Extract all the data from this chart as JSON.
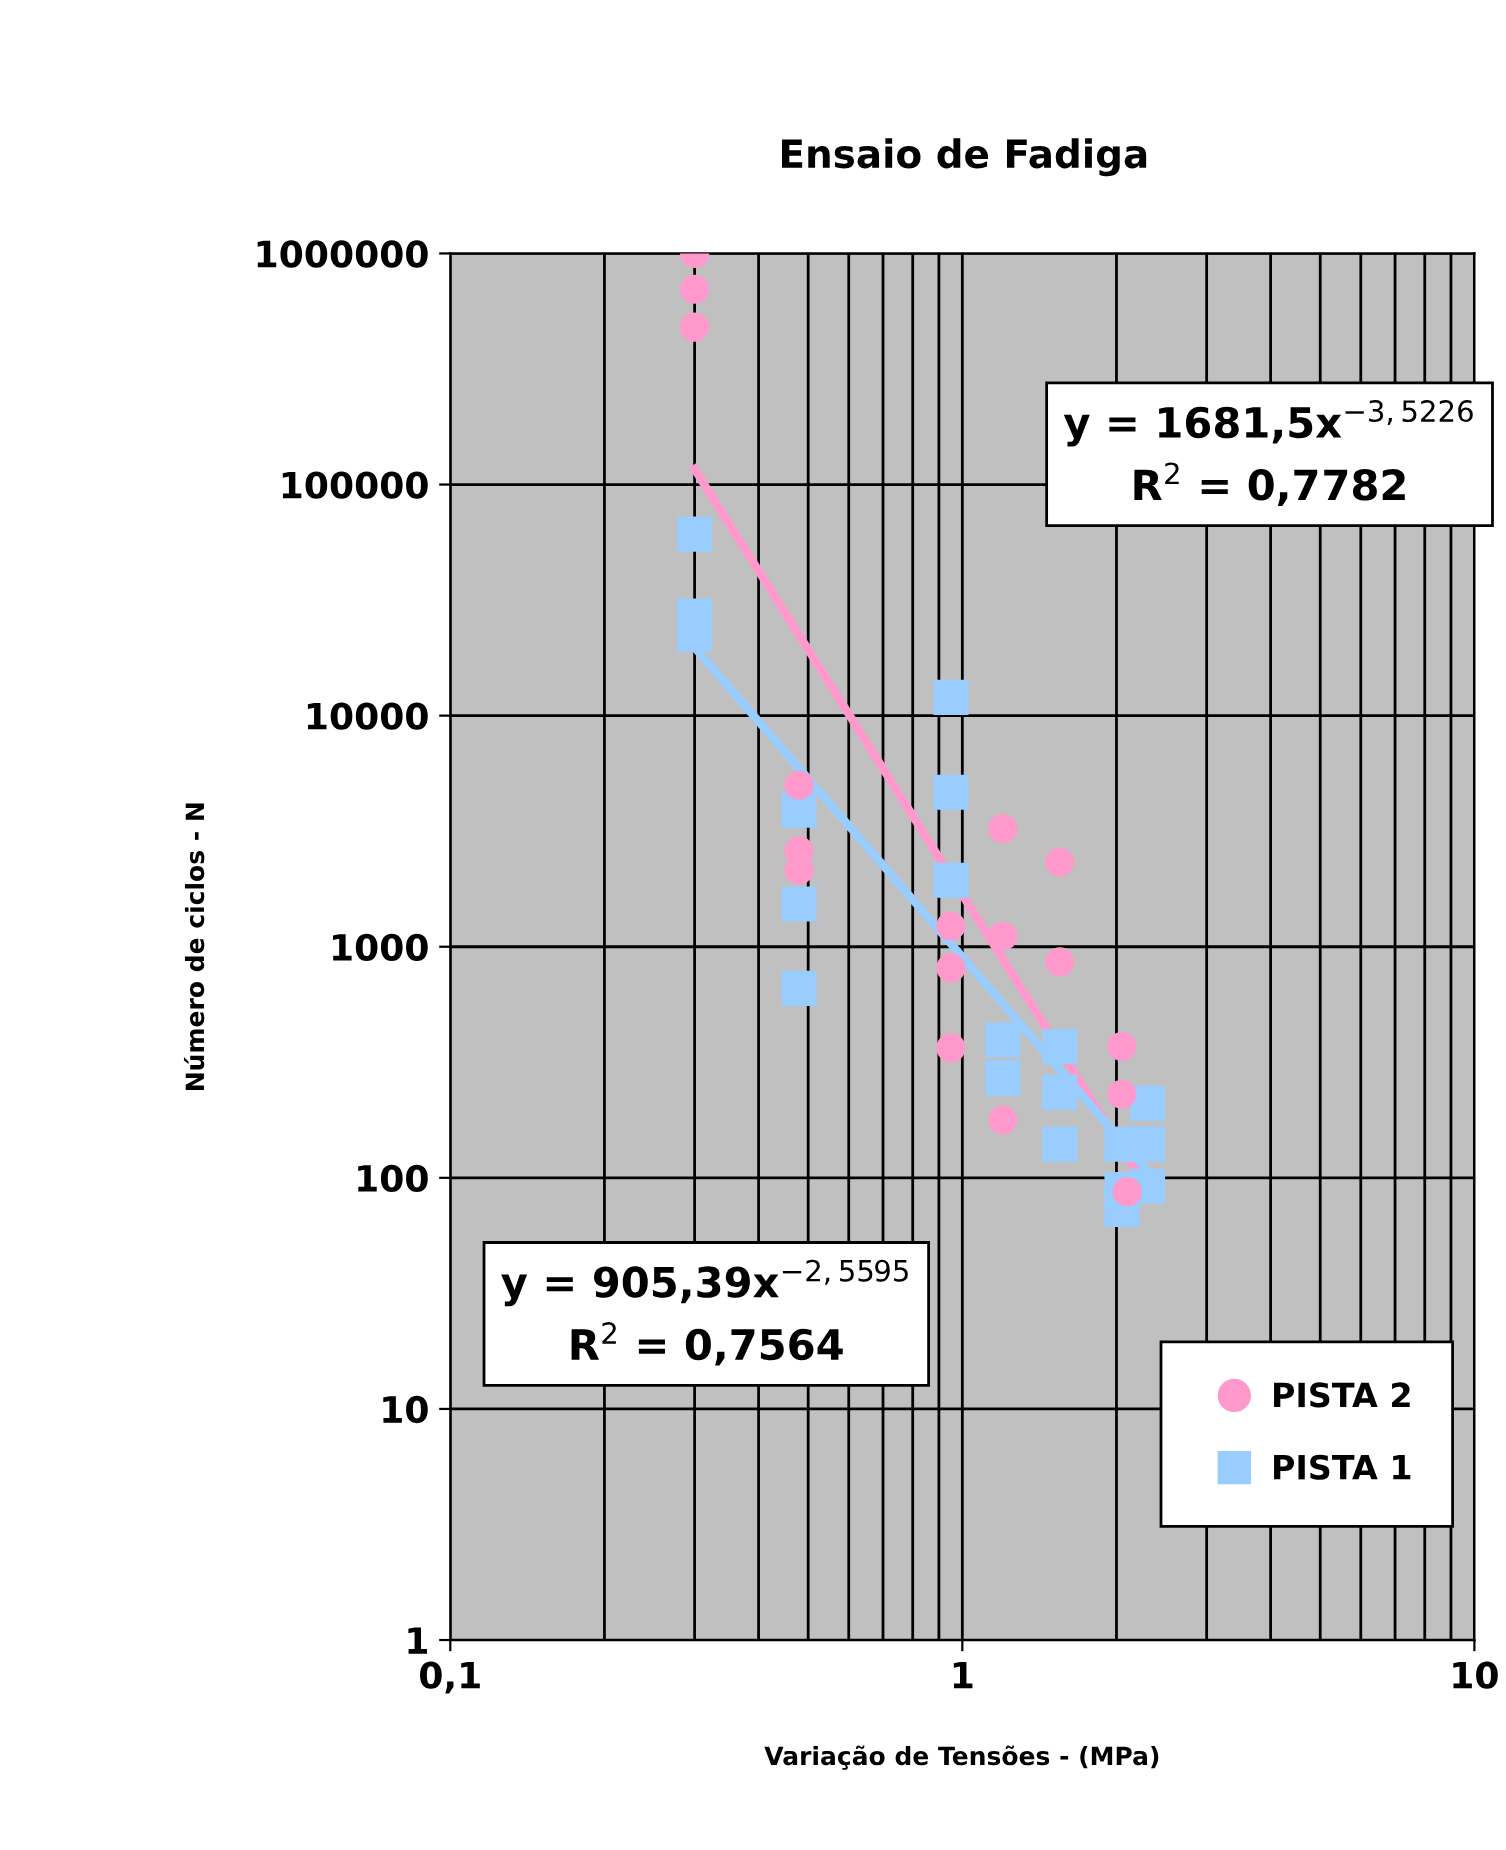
{
  "chart_data": {
    "type": "scatter",
    "title": "Ensaio de Fadiga",
    "xlabel": "Variação de Tensões - (MPa)",
    "ylabel": "Número de ciclos - N",
    "log": "xy",
    "xlim": [
      0.1,
      10
    ],
    "xticks": [
      {
        "value": 0.1,
        "label": "0,1"
      },
      1,
      10
    ],
    "ylim": [
      1,
      1000000
    ],
    "yticks": [
      1,
      10,
      100,
      1000,
      10000,
      100000,
      1000000
    ],
    "grid": true,
    "legend": "bottom right",
    "series": [
      {
        "name": "PISTA 2",
        "color": "#ff99cc",
        "marker": "circle",
        "x": [
          0.3,
          0.3,
          0.3,
          0.48,
          0.48,
          0.48,
          0.95,
          0.95,
          0.95,
          1.2,
          1.2,
          1.2,
          1.55,
          1.55,
          2.05,
          2.05,
          2.1
        ],
        "values": [
          1000000,
          700000,
          480000,
          5000,
          2600,
          2150,
          1230,
          810,
          365,
          3250,
          1110,
          178,
          2320,
          860,
          370,
          230,
          87
        ]
      },
      {
        "name": "PISTA 1",
        "color": "#99ccff",
        "marker": "square",
        "x": [
          0.3,
          0.3,
          0.3,
          0.48,
          0.48,
          0.48,
          0.95,
          0.95,
          0.95,
          1.2,
          1.2,
          1.55,
          1.55,
          1.55,
          2.05,
          2.05,
          2.05,
          2.3,
          2.3,
          2.3
        ],
        "values": [
          61000,
          27000,
          22500,
          3900,
          1530,
          660,
          12000,
          4660,
          1940,
          395,
          270,
          370,
          235,
          140,
          140,
          89,
          73,
          210,
          140,
          92
        ]
      },
      {
        "type": "line",
        "color": "#ff99cc",
        "x": [
          0.3,
          2.3
        ],
        "values": [
          116700,
          89.4
        ]
      },
      {
        "type": "line",
        "color": "#99ccff",
        "x": [
          0.3,
          2.3
        ],
        "values": [
          19740,
          107
        ]
      }
    ],
    "annotations": [
      "y = 1681,5x$^{−3,5226}$\nR$^{2}$ = 0,7782",
      "y = 905,39x$^{−2,5595}$\nR$^{2}$ = 0,7564"
    ]
  }
}
